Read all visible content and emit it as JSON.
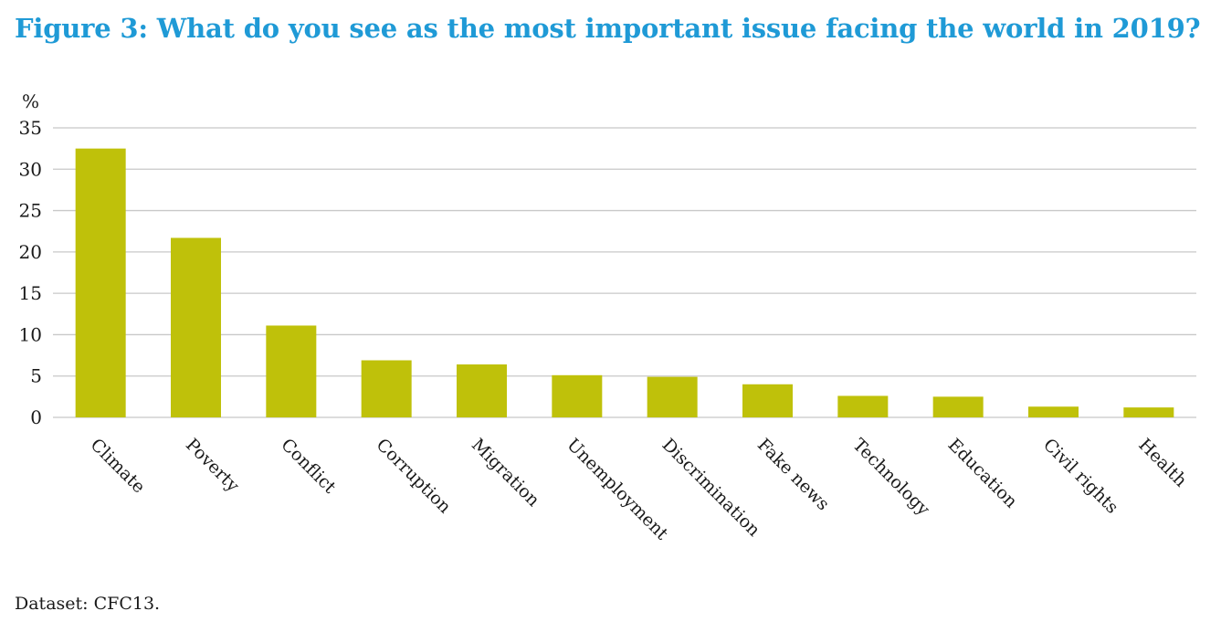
{
  "figure_title": "Figure 3: What do you see as the most important issue facing the world in 2019?",
  "footer_note": "Dataset: CFC13.",
  "colors": {
    "title": "#1f9ad6",
    "bar": "#bfc10a",
    "grid": "#c8c8c8"
  },
  "chart_data": {
    "type": "bar",
    "title": "Figure 3: What do you see as the most important issue facing the world in 2019?",
    "ylabel": "%",
    "xlabel": "",
    "ylim": [
      0,
      35
    ],
    "yticks": [
      0,
      5,
      10,
      15,
      20,
      25,
      30,
      35
    ],
    "grid": true,
    "categories": [
      "Climate",
      "Poverty",
      "Conflict",
      "Corruption",
      "Migration",
      "Unemployment",
      "Discrimination",
      "Fake news",
      "Technology",
      "Education",
      "Civil rights",
      "Health"
    ],
    "values": [
      32.5,
      21.7,
      11.1,
      6.9,
      6.4,
      5.1,
      4.9,
      4.0,
      2.6,
      2.5,
      1.3,
      1.2
    ]
  }
}
